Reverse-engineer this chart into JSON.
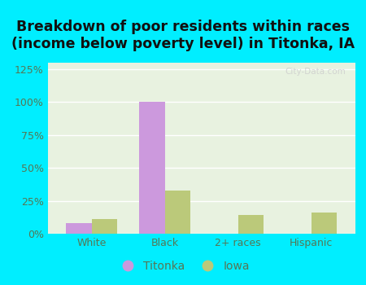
{
  "title": "Breakdown of poor residents within races\n(income below poverty level) in Titonka, IA",
  "categories": [
    "White",
    "Black",
    "2+ races",
    "Hispanic"
  ],
  "titonka_values": [
    8,
    100,
    0,
    0
  ],
  "iowa_values": [
    11,
    33,
    14,
    16
  ],
  "titonka_color": "#cc99dd",
  "iowa_color": "#bbc97a",
  "background_outer": "#00eeff",
  "background_inner": "#e8f2e0",
  "ylim": [
    0,
    130
  ],
  "yticks": [
    0,
    25,
    50,
    75,
    100,
    125
  ],
  "ytick_labels": [
    "0%",
    "25%",
    "50%",
    "75%",
    "100%",
    "125%"
  ],
  "grid_color": "#ffffff",
  "bar_width": 0.35,
  "legend_labels": [
    "Titonka",
    "Iowa"
  ],
  "title_fontsize": 12.5,
  "tick_fontsize": 9,
  "legend_fontsize": 10,
  "tick_color": "#557755",
  "title_color": "#111111"
}
